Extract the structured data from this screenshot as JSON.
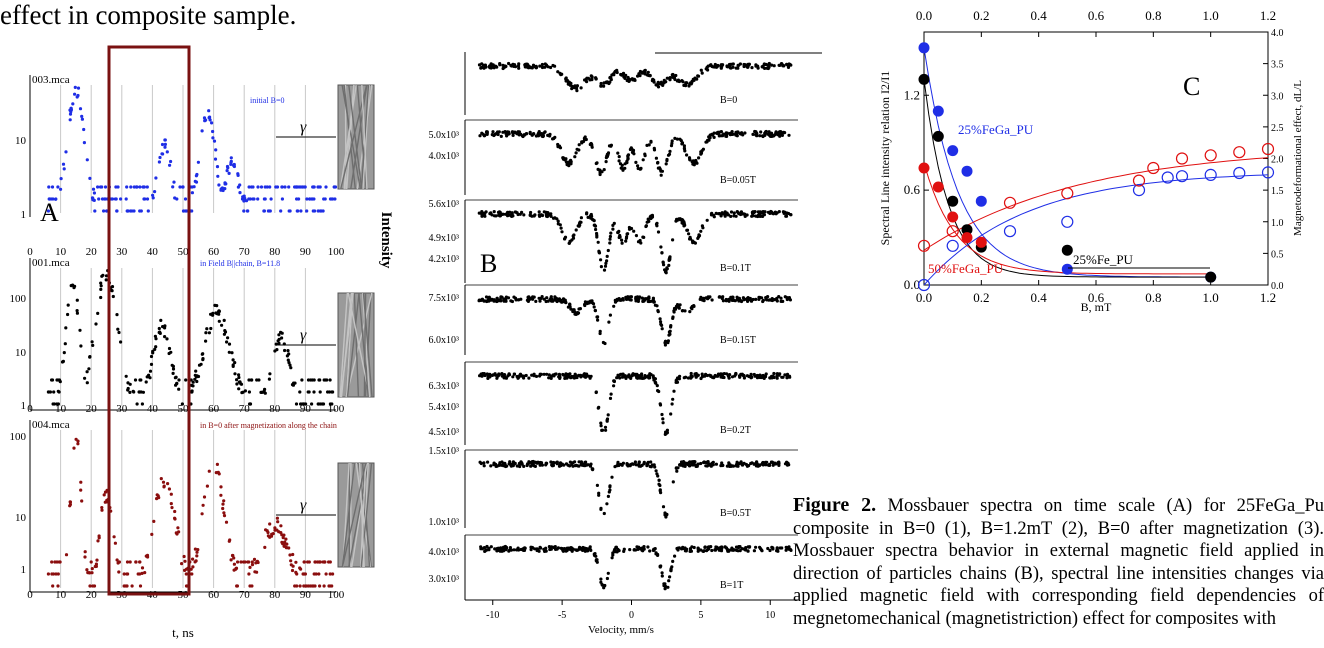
{
  "heading": "effect in composite sample.",
  "panel_a": {
    "letter": "A",
    "x_ticks": [
      "0",
      "10",
      "20",
      "30",
      "40",
      "50",
      "60",
      "70",
      "80",
      "90",
      "100"
    ],
    "x_label": "t, ns",
    "gamma": "γ",
    "plots": [
      {
        "file": "003.mca",
        "note": "initial B=0",
        "y_ticks": [
          "10",
          "1"
        ],
        "color": "#1f2ee6"
      },
      {
        "file": "001.mca",
        "note": "in Field B||chain, B=11.8",
        "y_ticks": [
          "100",
          "10",
          "1"
        ],
        "color": "#000000"
      },
      {
        "file": "004.mca",
        "note": "in B=0 after magnetization along the chain",
        "y_ticks": [
          "100",
          "10",
          "1"
        ],
        "color": "#8b0e0e"
      }
    ]
  },
  "panel_b": {
    "letter": "B",
    "y_label": "Intensity",
    "x_label": "Velocity, mm/s",
    "x_ticks": [
      "-10",
      "-5",
      "0",
      "5",
      "10"
    ],
    "spectra": [
      {
        "field": "B=0",
        "y_ticks": [
          "5.0x10³"
        ]
      },
      {
        "field": "B=0.05T",
        "y_ticks": [
          "4.0x10³"
        ]
      },
      {
        "field": "B=0.1T",
        "y_ticks": [
          "5.6x10³",
          "4.9x10³",
          "4.2x10³"
        ]
      },
      {
        "field": "B=0.15T",
        "y_ticks": [
          "7.5x10³",
          "6.0x10³"
        ]
      },
      {
        "field": "B=0.2T",
        "y_ticks": [
          "6.3x10³",
          "5.4x10³",
          "4.5x10³"
        ]
      },
      {
        "field": "B=0.5T",
        "y_ticks": [
          "1.5x10³",
          "1.0x10³"
        ]
      },
      {
        "field": "B=1T",
        "y_ticks": [
          "4.0x10³",
          "3.0x10³"
        ]
      }
    ]
  },
  "chart_data": {
    "type": "scatter",
    "x_ticks": [
      "0.0",
      "0.2",
      "0.4",
      "0.6",
      "0.8",
      "1.0",
      "1.2"
    ],
    "y_left_ticks": [
      "0.0",
      "0.6",
      "1.2"
    ],
    "y_right_ticks": [
      "0.0",
      "0.5",
      "1.0",
      "1.5",
      "2.0",
      "2.5",
      "3.0",
      "3.5",
      "4.0"
    ],
    "xlabel": "B, mT",
    "ylabel_left": "Spectral Line intensity relation I2/I1",
    "ylabel_right": "Magnetodeformational effect, dL/L",
    "letter": "C",
    "xlim": [
      0,
      1.2
    ],
    "ylim_left": [
      0,
      1.6
    ],
    "ylim_right": [
      0,
      4.0
    ],
    "series": [
      {
        "name": "25%FeGa_PU",
        "color": "#1f2ee6",
        "axis": "left",
        "filled": true,
        "x": [
          0.0,
          0.05,
          0.1,
          0.15,
          0.2,
          0.5,
          1.0
        ],
        "y": [
          1.5,
          1.1,
          0.85,
          0.72,
          0.53,
          0.1,
          0.05
        ]
      },
      {
        "name": "",
        "color": "#000000",
        "axis": "left",
        "filled": true,
        "x": [
          0.0,
          0.05,
          0.1,
          0.15,
          0.2,
          0.5,
          1.0
        ],
        "y": [
          1.3,
          0.94,
          0.53,
          0.35,
          0.24,
          0.22,
          0.05
        ]
      },
      {
        "name": "50%FeGa_PU",
        "color": "#e01010",
        "axis": "left",
        "filled": true,
        "x": [
          0.0,
          0.05,
          0.1,
          0.15,
          0.2
        ],
        "y": [
          0.74,
          0.62,
          0.43,
          0.3,
          0.27
        ]
      },
      {
        "name": "",
        "color": "#1f2ee6",
        "axis": "right",
        "filled": false,
        "x": [
          0.0,
          0.1,
          0.3,
          0.5,
          0.75,
          0.85,
          0.9,
          1.0,
          1.1,
          1.2
        ],
        "y": [
          0.0,
          0.62,
          0.85,
          1.0,
          1.5,
          1.7,
          1.72,
          1.74,
          1.77,
          1.78
        ]
      },
      {
        "name": "",
        "color": "#e01010",
        "axis": "right",
        "filled": false,
        "x": [
          0.0,
          0.1,
          0.3,
          0.5,
          0.75,
          0.8,
          0.9,
          1.0,
          1.1,
          1.2
        ],
        "y": [
          0.62,
          0.85,
          1.3,
          1.45,
          1.65,
          1.85,
          2.0,
          2.05,
          2.1,
          2.15
        ]
      }
    ],
    "label_fe": "25%Fe_PU"
  },
  "caption": {
    "bold": "Figure 2.",
    "text": " Mossbauer spectra on time scale (A) for 25FeGa_Pu composite in B=0 (1), B=1.2mT (2), B=0 after magnetization (3). Mossbauer spectra behavior in external magnetic field applied in direction of particles chains (B), spectral line intensities changes via applied magnetic field with corresponding field dependencies of megnetomechanical (magnetistriction) effect for composites with"
  }
}
